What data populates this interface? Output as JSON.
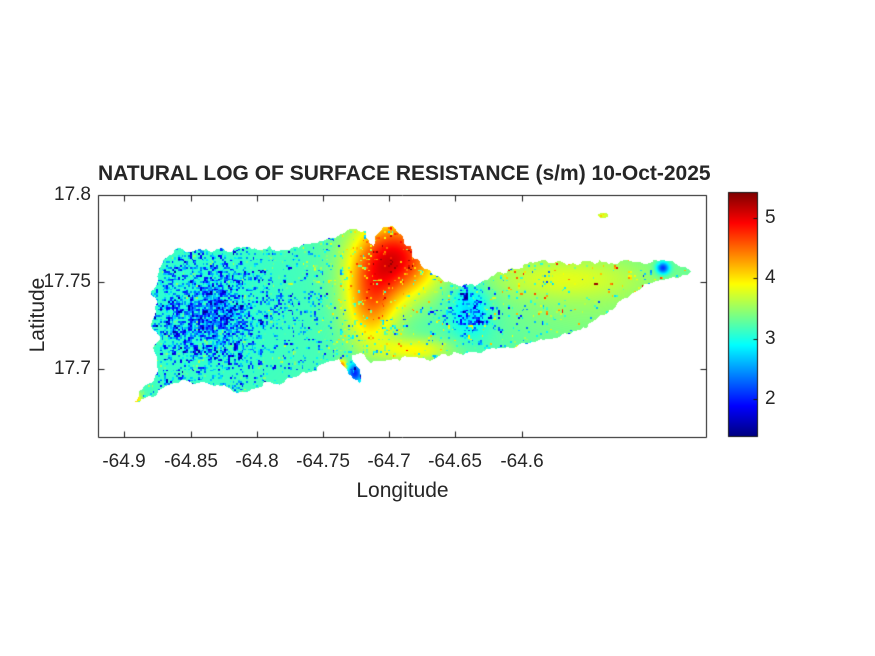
{
  "window": {
    "background": "#ffffff"
  },
  "title": "NATURAL LOG OF SURFACE RESISTANCE (s/m) 10-Oct-2025",
  "axes": {
    "xlabel": "Longitude",
    "ylabel": "Latitude",
    "xlim": [
      -64.92,
      -64.46
    ],
    "ylim": [
      17.66,
      17.8
    ],
    "xticks": [
      -64.9,
      -64.85,
      -64.8,
      -64.75,
      -64.7,
      -64.65,
      -64.6
    ],
    "xtick_labels": [
      "-64.9",
      "-64.85",
      "-64.8",
      "-64.75",
      "-64.7",
      "-64.65",
      "-64.6"
    ],
    "yticks": [
      17.8,
      17.75,
      17.7
    ],
    "ytick_labels": [
      "17.8",
      "17.75",
      "17.7"
    ],
    "text_color": "#262626",
    "line_color": "#151515"
  },
  "colorbar": {
    "colormap": "jet",
    "vmin": 1.37,
    "vmax": 5.43,
    "ticks": [
      2,
      3,
      4,
      5
    ],
    "tick_labels": [
      "2",
      "3",
      "4",
      "5"
    ]
  },
  "chart_data": {
    "type": "heatmap",
    "title": "NATURAL LOG OF SURFACE RESISTANCE (s/m) 10-Oct-2025",
    "xlabel": "Longitude",
    "ylabel": "Latitude",
    "units": "s/m",
    "date": "10-Oct-2025",
    "colormap": "jet",
    "value_range": [
      1.37,
      5.43
    ],
    "grid": false,
    "island_outline": [
      [
        -64.8943,
        17.6796
      ],
      [
        -64.889,
        17.6842
      ],
      [
        -64.8822,
        17.6911
      ],
      [
        -64.8769,
        17.6957
      ],
      [
        -64.8747,
        17.6992
      ],
      [
        -64.8785,
        17.7119
      ],
      [
        -64.8732,
        17.7165
      ],
      [
        -64.8785,
        17.7222
      ],
      [
        -64.88,
        17.7424
      ],
      [
        -64.8754,
        17.7493
      ],
      [
        -64.8686,
        17.7637
      ],
      [
        -64.8596,
        17.7695
      ],
      [
        -64.8505,
        17.7672
      ],
      [
        -64.843,
        17.7689
      ],
      [
        -64.8339,
        17.7672
      ],
      [
        -64.8263,
        17.7695
      ],
      [
        -64.8188,
        17.7672
      ],
      [
        -64.809,
        17.77
      ],
      [
        -64.7992,
        17.7683
      ],
      [
        -64.7901,
        17.7706
      ],
      [
        -64.781,
        17.7683
      ],
      [
        -64.7712,
        17.77
      ],
      [
        -64.7614,
        17.7718
      ],
      [
        -64.7523,
        17.7735
      ],
      [
        -64.7433,
        17.7752
      ],
      [
        -64.7342,
        17.7781
      ],
      [
        -64.7251,
        17.7804
      ],
      [
        -64.7176,
        17.7793
      ],
      [
        -64.7153,
        17.7723
      ],
      [
        -64.7115,
        17.7706
      ],
      [
        -64.7085,
        17.7781
      ],
      [
        -64.7047,
        17.7816
      ],
      [
        -64.6979,
        17.7821
      ],
      [
        -64.6934,
        17.7781
      ],
      [
        -64.6889,
        17.7723
      ],
      [
        -64.6828,
        17.7666
      ],
      [
        -64.6768,
        17.7614
      ],
      [
        -64.6692,
        17.7568
      ],
      [
        -64.6617,
        17.7528
      ],
      [
        -64.6526,
        17.7493
      ],
      [
        -64.6451,
        17.747
      ],
      [
        -64.6353,
        17.7476
      ],
      [
        -64.6254,
        17.751
      ],
      [
        -64.6164,
        17.7556
      ],
      [
        -64.6073,
        17.7579
      ],
      [
        -64.5982,
        17.7602
      ],
      [
        -64.5892,
        17.7614
      ],
      [
        -64.5801,
        17.7608
      ],
      [
        -64.5726,
        17.762
      ],
      [
        -64.5635,
        17.7602
      ],
      [
        -64.5544,
        17.762
      ],
      [
        -64.5454,
        17.7602
      ],
      [
        -64.5363,
        17.7614
      ],
      [
        -64.5272,
        17.7602
      ],
      [
        -64.5182,
        17.762
      ],
      [
        -64.5091,
        17.7608
      ],
      [
        -64.5001,
        17.7626
      ],
      [
        -64.491,
        17.762
      ],
      [
        -64.4834,
        17.7602
      ],
      [
        -64.4766,
        17.7585
      ],
      [
        -64.4721,
        17.7562
      ],
      [
        -64.4781,
        17.7539
      ],
      [
        -64.4857,
        17.7528
      ],
      [
        -64.494,
        17.751
      ],
      [
        -64.5016,
        17.7493
      ],
      [
        -64.5106,
        17.7453
      ],
      [
        -64.5197,
        17.7407
      ],
      [
        -64.5288,
        17.7361
      ],
      [
        -64.5378,
        17.7309
      ],
      [
        -64.5469,
        17.7268
      ],
      [
        -64.5559,
        17.7222
      ],
      [
        -64.565,
        17.7199
      ],
      [
        -64.5741,
        17.7176
      ],
      [
        -64.5831,
        17.7165
      ],
      [
        -64.5922,
        17.7153
      ],
      [
        -64.6013,
        17.7142
      ],
      [
        -64.6103,
        17.7124
      ],
      [
        -64.6194,
        17.7113
      ],
      [
        -64.6285,
        17.7101
      ],
      [
        -64.6375,
        17.7096
      ],
      [
        -64.6466,
        17.7084
      ],
      [
        -64.6556,
        17.7072
      ],
      [
        -64.6647,
        17.7061
      ],
      [
        -64.6738,
        17.7061
      ],
      [
        -64.6828,
        17.7067
      ],
      [
        -64.6919,
        17.7044
      ],
      [
        -64.701,
        17.7049
      ],
      [
        -64.7085,
        17.7044
      ],
      [
        -64.7138,
        17.7032
      ],
      [
        -64.7176,
        17.7061
      ],
      [
        -64.7221,
        17.709
      ],
      [
        -64.7282,
        17.7078
      ],
      [
        -64.7251,
        17.7021
      ],
      [
        -64.7214,
        17.6957
      ],
      [
        -64.7221,
        17.6911
      ],
      [
        -64.7274,
        17.694
      ],
      [
        -64.7327,
        17.7003
      ],
      [
        -64.738,
        17.7055
      ],
      [
        -64.7448,
        17.7044
      ],
      [
        -64.7523,
        17.7021
      ],
      [
        -64.7599,
        17.698
      ],
      [
        -64.7682,
        17.6957
      ],
      [
        -64.778,
        17.694
      ],
      [
        -64.7886,
        17.6917
      ],
      [
        -64.7992,
        17.6888
      ],
      [
        -64.8075,
        17.6865
      ],
      [
        -64.8143,
        17.6859
      ],
      [
        -64.8203,
        17.6888
      ],
      [
        -64.8294,
        17.6905
      ],
      [
        -64.8407,
        17.6923
      ],
      [
        -64.8543,
        17.6934
      ],
      [
        -64.8641,
        17.6911
      ],
      [
        -64.8747,
        17.6877
      ],
      [
        -64.8845,
        17.683
      ]
    ],
    "islets": [
      {
        "name": "buck-island",
        "center": [
          -64.5384,
          17.7882
        ],
        "rx": 0.0038,
        "ry": 0.0014
      }
    ],
    "field": {
      "base": 3.18,
      "gaussians": [
        [
          -64.6957,
          17.7637,
          1.75,
          0.022,
          0.016
        ],
        [
          -64.7145,
          17.7366,
          1.05,
          0.014,
          0.017
        ],
        [
          -64.6806,
          17.7107,
          0.7,
          0.02,
          0.005
        ],
        [
          -64.55,
          17.745,
          0.3,
          0.055,
          0.025
        ],
        [
          -64.575,
          17.752,
          0.35,
          0.045,
          0.008
        ],
        [
          -64.8913,
          17.6819,
          0.9,
          0.0035,
          0.0035
        ],
        [
          -64.7259,
          17.6975,
          -1.2,
          0.004,
          0.004
        ],
        [
          -64.4933,
          17.7579,
          -1.3,
          0.0035,
          0.0025
        ],
        [
          -64.5384,
          17.7882,
          0.55,
          0.005,
          0.002
        ],
        [
          -64.639,
          17.7349,
          -0.5,
          0.011,
          0.012
        ],
        [
          -64.7357,
          17.7015,
          1.3,
          0.0025,
          0.0025
        ],
        [
          -64.84,
          17.733,
          -0.15,
          0.04,
          0.03
        ]
      ],
      "speckle": {
        "seed": 7,
        "density_base": 0.18,
        "density_gaussians": [
          [
            -64.845,
            17.735,
            0.22,
            0.05,
            0.035
          ],
          [
            -64.8354,
            17.7291,
            0.35,
            0.02,
            0.016
          ],
          [
            -64.639,
            17.7349,
            0.25,
            0.012,
            0.012
          ],
          [
            -64.52,
            17.75,
            -0.1,
            0.05,
            0.02
          ]
        ],
        "neg_depth_min": 0.25,
        "neg_depth_range": 1.45,
        "pos_density": 0.13,
        "pos_amp_west": 0.6,
        "pos_amp_east": 1.7,
        "pos_lon_start": -64.83,
        "pos_lon_span": 0.3,
        "clamp": [
          1.45,
          5.35
        ]
      }
    }
  }
}
